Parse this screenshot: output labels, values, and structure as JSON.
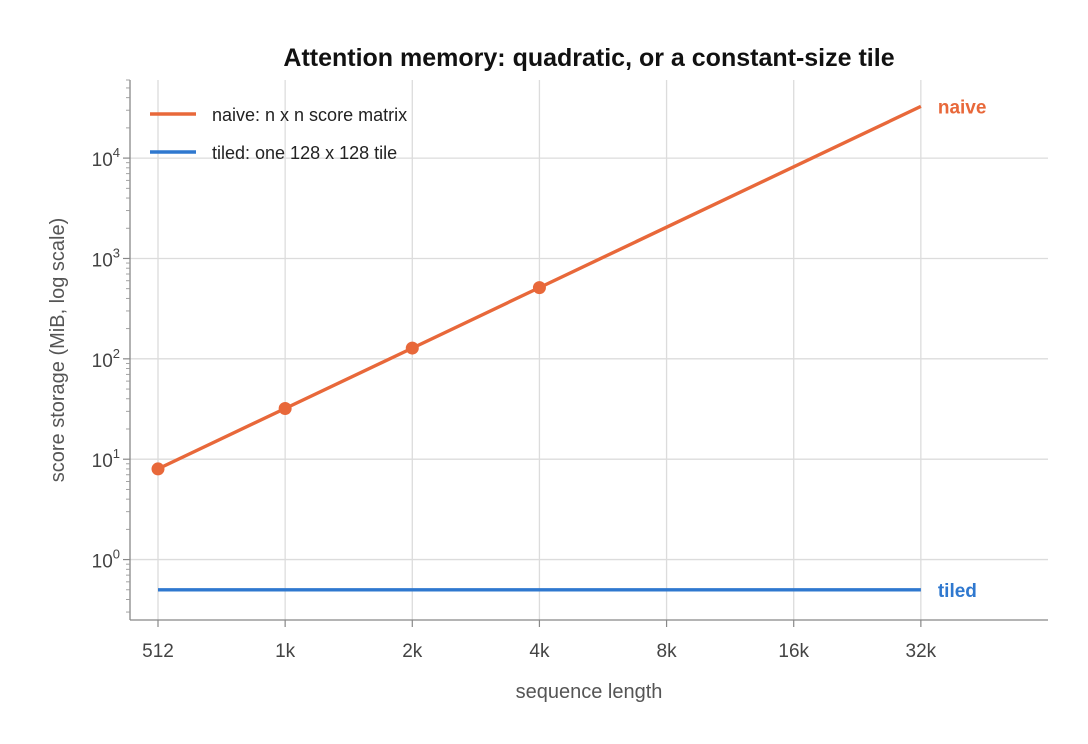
{
  "chart_data": {
    "type": "line",
    "title": "Attention memory: quadratic, or a constant-size tile",
    "xlabel": "sequence length",
    "ylabel": "score storage (MiB, log scale)",
    "x_scale": "log2",
    "y_scale": "log10",
    "xlim": [
      512,
      65536
    ],
    "ylim": [
      0.25,
      60000
    ],
    "x_ticks": [
      512,
      1024,
      2048,
      4096,
      8192,
      16384,
      32768
    ],
    "x_tick_labels": [
      "512",
      "1k",
      "2k",
      "4k",
      "8k",
      "16k",
      "32k"
    ],
    "y_ticks": [
      {
        "value": 1,
        "base": "10",
        "exp": "0"
      },
      {
        "value": 10,
        "base": "10",
        "exp": "1"
      },
      {
        "value": 100,
        "base": "10",
        "exp": "2"
      },
      {
        "value": 1000,
        "base": "10",
        "exp": "3"
      },
      {
        "value": 10000,
        "base": "10",
        "exp": "4"
      }
    ],
    "grid": true,
    "legend_position": "top-left",
    "series": [
      {
        "id": "naive",
        "name": "naive: n x n score matrix",
        "end_label": "naive",
        "color": "#e8683a",
        "x": [
          512,
          1024,
          2048,
          4096,
          32768
        ],
        "y": [
          8,
          32,
          128,
          512,
          32768
        ],
        "markers": [
          512,
          1024,
          2048,
          4096
        ]
      },
      {
        "id": "tiled",
        "name": "tiled: one 128 x 128 tile",
        "end_label": "tiled",
        "color": "#2f78cf",
        "x": [
          512,
          32768
        ],
        "y": [
          0.5,
          0.5
        ],
        "markers": []
      }
    ]
  }
}
